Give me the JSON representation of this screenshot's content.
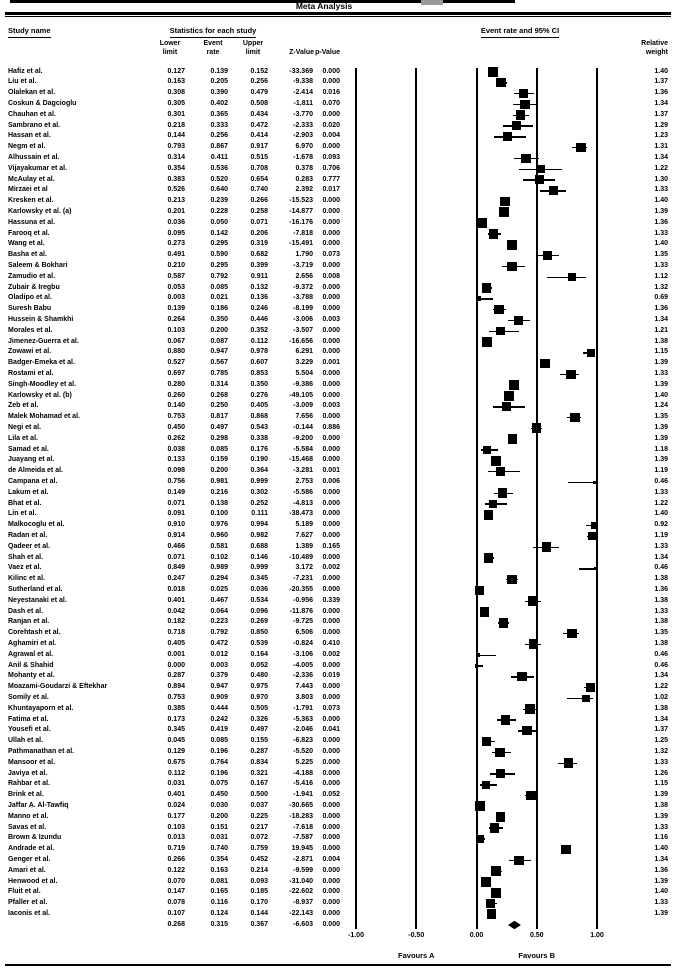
{
  "title": "Meta Analysis",
  "header": {
    "study_name": "Study name",
    "stats_title": "Statistics for each study",
    "plot_title": "Event rate and 95% CI",
    "col_lower": "Lower\nlimit",
    "col_event": "Event\nrate",
    "col_upper": "Upper\nlimit",
    "col_z": "Z-Value",
    "col_p": "p-Value",
    "col_weight": "Relative\nweight"
  },
  "colors": {
    "ink": "#000000",
    "background": "#ffffff"
  },
  "chart_data": {
    "type": "scatter",
    "subtype": "forest_plot",
    "title": "Meta Analysis",
    "xlabel": "Event rate",
    "xlim": [
      -1.0,
      1.0
    ],
    "grid": "vertical-lines-at-ticks",
    "axis": {
      "ticks": [
        {
          "value": -1.0,
          "label": "-1.00"
        },
        {
          "value": -0.5,
          "label": "-0.50"
        },
        {
          "value": 0.0,
          "label": "0.00"
        },
        {
          "value": 0.5,
          "label": "0.50"
        },
        {
          "value": 1.0,
          "label": "1.00"
        }
      ],
      "favours_a": "Favours A",
      "favours_b": "Favours B"
    },
    "studies": [
      {
        "name": "Hafiz et al.",
        "lower": "0.127",
        "event": "0.139",
        "upper": "0.152",
        "z": "-33.369",
        "p": "0.000",
        "weight": "1.40"
      },
      {
        "name": "Liu et al.",
        "lower": "0.163",
        "event": "0.205",
        "upper": "0.256",
        "z": "-9.338",
        "p": "0.000",
        "weight": "1.37"
      },
      {
        "name": "Olalekan et al.",
        "lower": "0.308",
        "event": "0.390",
        "upper": "0.479",
        "z": "-2.414",
        "p": "0.016",
        "weight": "1.36"
      },
      {
        "name": "Coskun & Dagcioglu",
        "lower": "0.305",
        "event": "0.402",
        "upper": "0.508",
        "z": "-1.811",
        "p": "0.070",
        "weight": "1.34"
      },
      {
        "name": "Chauhan  et al.",
        "lower": "0.301",
        "event": "0.365",
        "upper": "0.434",
        "z": "-3.770",
        "p": "0.000",
        "weight": "1.37"
      },
      {
        "name": "Sambrano et al.",
        "lower": "0.218",
        "event": "0.333",
        "upper": "0.472",
        "z": "-2.333",
        "p": "0.020",
        "weight": "1.29"
      },
      {
        "name": "Hassan et al.",
        "lower": "0.144",
        "event": "0.256",
        "upper": "0.414",
        "z": "-2.903",
        "p": "0.004",
        "weight": "1.23"
      },
      {
        "name": "Negm et al.",
        "lower": "0.793",
        "event": "0.867",
        "upper": "0.917",
        "z": "6.970",
        "p": "0.000",
        "weight": "1.31"
      },
      {
        "name": "Alhussain et al.",
        "lower": "0.314",
        "event": "0.411",
        "upper": "0.515",
        "z": "-1.678",
        "p": "0.093",
        "weight": "1.34"
      },
      {
        "name": "Vijayakumar et al.",
        "lower": "0.354",
        "event": "0.536",
        "upper": "0.708",
        "z": "0.378",
        "p": "0.706",
        "weight": "1.22"
      },
      {
        "name": "McAulay et al.",
        "lower": "0.383",
        "event": "0.520",
        "upper": "0.654",
        "z": "0.283",
        "p": "0.777",
        "weight": "1.30"
      },
      {
        "name": "Mirzaei et al",
        "lower": "0.526",
        "event": "0.640",
        "upper": "0.740",
        "z": "2.392",
        "p": "0.017",
        "weight": "1.33"
      },
      {
        "name": "Kresken et al.",
        "lower": "0.213",
        "event": "0.239",
        "upper": "0.266",
        "z": "-15.523",
        "p": "0.000",
        "weight": "1.40"
      },
      {
        "name": "Karlowsky et al. (a)",
        "lower": "0.201",
        "event": "0.228",
        "upper": "0.258",
        "z": "-14.877",
        "p": "0.000",
        "weight": "1.39"
      },
      {
        "name": "Hassuna et al.",
        "lower": "0.036",
        "event": "0.050",
        "upper": "0.071",
        "z": "-16.176",
        "p": "0.000",
        "weight": "1.36"
      },
      {
        "name": "Farooq et al.",
        "lower": "0.095",
        "event": "0.142",
        "upper": "0.206",
        "z": "-7.818",
        "p": "0.000",
        "weight": "1.33"
      },
      {
        "name": "Wang et al.",
        "lower": "0.273",
        "event": "0.295",
        "upper": "0.319",
        "z": "-15.491",
        "p": "0.000",
        "weight": "1.40"
      },
      {
        "name": "Basha et al.",
        "lower": "0.491",
        "event": "0.590",
        "upper": "0.682",
        "z": "1.790",
        "p": "0.073",
        "weight": "1.35"
      },
      {
        "name": "Saleem & Bokhari",
        "lower": "0.210",
        "event": "0.295",
        "upper": "0.399",
        "z": "-3.719",
        "p": "0.000",
        "weight": "1.33"
      },
      {
        "name": "Zamudio et al.",
        "lower": "0.587",
        "event": "0.792",
        "upper": "0.911",
        "z": "2.656",
        "p": "0.008",
        "weight": "1.12"
      },
      {
        "name": "Zubair &  Iregbu",
        "lower": "0.053",
        "event": "0.085",
        "upper": "0.132",
        "z": "-9.372",
        "p": "0.000",
        "weight": "1.32"
      },
      {
        "name": "Oladipo et al.",
        "lower": "0.003",
        "event": "0.021",
        "upper": "0.136",
        "z": "-3.788",
        "p": "0.000",
        "weight": "0.69"
      },
      {
        "name": "Suresh Babu",
        "lower": "0.139",
        "event": "0.186",
        "upper": "0.246",
        "z": "-8.199",
        "p": "0.000",
        "weight": "1.36"
      },
      {
        "name": "Hussein & Shamkhi",
        "lower": "0.264",
        "event": "0.350",
        "upper": "0.446",
        "z": "-3.006",
        "p": "0.003",
        "weight": "1.34"
      },
      {
        "name": "Morales et al.",
        "lower": "0.103",
        "event": "0.200",
        "upper": "0.352",
        "z": "-3.507",
        "p": "0.000",
        "weight": "1.21"
      },
      {
        "name": "Jimenez-Guerra et al.",
        "lower": "0.067",
        "event": "0.087",
        "upper": "0.112",
        "z": "-16.656",
        "p": "0.000",
        "weight": "1.38"
      },
      {
        "name": "Zowawi et al.",
        "lower": "0.880",
        "event": "0.947",
        "upper": "0.978",
        "z": "6.291",
        "p": "0.000",
        "weight": "1.15"
      },
      {
        "name": "Badger-Emeka et al.",
        "lower": "0.527",
        "event": "0.567",
        "upper": "0.607",
        "z": "3.229",
        "p": "0.001",
        "weight": "1.39"
      },
      {
        "name": "Rostami et al.",
        "lower": "0.697",
        "event": "0.785",
        "upper": "0.853",
        "z": "5.504",
        "p": "0.000",
        "weight": "1.33"
      },
      {
        "name": "Singh-Moodley et al.",
        "lower": "0.280",
        "event": "0.314",
        "upper": "0.350",
        "z": "-9.386",
        "p": "0.000",
        "weight": "1.39"
      },
      {
        "name": "Karlowsky et al. (b)",
        "lower": "0.260",
        "event": "0.268",
        "upper": "0.276",
        "z": "-49.105",
        "p": "0.000",
        "weight": "1.40"
      },
      {
        "name": "Zeb et al.",
        "lower": "0.140",
        "event": "0.250",
        "upper": "0.405",
        "z": "-3.009",
        "p": "0.003",
        "weight": "1.24"
      },
      {
        "name": "Malek Mohamad et al.",
        "lower": "0.753",
        "event": "0.817",
        "upper": "0.868",
        "z": "7.656",
        "p": "0.000",
        "weight": "1.35"
      },
      {
        "name": "Negi et al.",
        "lower": "0.450",
        "event": "0.497",
        "upper": "0.543",
        "z": "-0.144",
        "p": "0.886",
        "weight": "1.39"
      },
      {
        "name": "Lila et al.",
        "lower": "0.262",
        "event": "0.298",
        "upper": "0.338",
        "z": "-9.200",
        "p": "0.000",
        "weight": "1.39"
      },
      {
        "name": "Samad et al.",
        "lower": "0.038",
        "event": "0.085",
        "upper": "0.176",
        "z": "-5.584",
        "p": "0.000",
        "weight": "1.18"
      },
      {
        "name": "Juayang et al.",
        "lower": "0.133",
        "event": "0.159",
        "upper": "0.190",
        "z": "-15.468",
        "p": "0.000",
        "weight": "1.39"
      },
      {
        "name": "de Almeida et al.",
        "lower": "0.098",
        "event": "0.200",
        "upper": "0.364",
        "z": "-3.281",
        "p": "0.001",
        "weight": "1.19"
      },
      {
        "name": "Campana et al.",
        "lower": "0.756",
        "event": "0.981",
        "upper": "0.999",
        "z": "2.753",
        "p": "0.006",
        "weight": "0.46"
      },
      {
        "name": "Lakum et al.",
        "lower": "0.149",
        "event": "0.216",
        "upper": "0.302",
        "z": "-5.586",
        "p": "0.000",
        "weight": "1.33"
      },
      {
        "name": "Bhat et al.",
        "lower": "0.071",
        "event": "0.138",
        "upper": "0.252",
        "z": "-4.813",
        "p": "0.000",
        "weight": "1.22"
      },
      {
        "name": "Lin et al.",
        "lower": "0.091",
        "event": "0.100",
        "upper": "0.111",
        "z": "-38.473",
        "p": "0.000",
        "weight": "1.40"
      },
      {
        "name": "Malkocoglu et al.",
        "lower": "0.910",
        "event": "0.976",
        "upper": "0.994",
        "z": "5.189",
        "p": "0.000",
        "weight": "0.92"
      },
      {
        "name": "Radan et al.",
        "lower": "0.914",
        "event": "0.960",
        "upper": "0.982",
        "z": "7.627",
        "p": "0.000",
        "weight": "1.19"
      },
      {
        "name": "Qadeer et al.",
        "lower": "0.466",
        "event": "0.581",
        "upper": "0.688",
        "z": "1.389",
        "p": "0.165",
        "weight": "1.33"
      },
      {
        "name": "Shah et al.",
        "lower": "0.071",
        "event": "0.102",
        "upper": "0.146",
        "z": "-10.489",
        "p": "0.000",
        "weight": "1.34"
      },
      {
        "name": "Vaez et al.",
        "lower": "0.849",
        "event": "0.989",
        "upper": "0.999",
        "z": "3.172",
        "p": "0.002",
        "weight": "0.46"
      },
      {
        "name": "Kilinc et al.",
        "lower": "0.247",
        "event": "0.294",
        "upper": "0.345",
        "z": "-7.231",
        "p": "0.000",
        "weight": "1.38"
      },
      {
        "name": "Sutherland et al.",
        "lower": "0.018",
        "event": "0.025",
        "upper": "0.036",
        "z": "-20.355",
        "p": "0.000",
        "weight": "1.36"
      },
      {
        "name": "Neyestanaki et al.",
        "lower": "0.401",
        "event": "0.467",
        "upper": "0.534",
        "z": "-0.956",
        "p": "0.339",
        "weight": "1.38"
      },
      {
        "name": "Dash et al.",
        "lower": "0.042",
        "event": "0.064",
        "upper": "0.096",
        "z": "-11.876",
        "p": "0.000",
        "weight": "1.33"
      },
      {
        "name": "Ranjan et al.",
        "lower": "0.182",
        "event": "0.223",
        "upper": "0.269",
        "z": "-9.725",
        "p": "0.000",
        "weight": "1.38"
      },
      {
        "name": "Corehtash et al.",
        "lower": "0.718",
        "event": "0.792",
        "upper": "0.850",
        "z": "6.506",
        "p": "0.000",
        "weight": "1.35"
      },
      {
        "name": "Aghamiri et al.",
        "lower": "0.405",
        "event": "0.472",
        "upper": "0.539",
        "z": "-0.824",
        "p": "0.410",
        "weight": "1.38"
      },
      {
        "name": "Agrawal et al.",
        "lower": "0.001",
        "event": "0.012",
        "upper": "0.164",
        "z": "-3.106",
        "p": "0.002",
        "weight": "0.46"
      },
      {
        "name": "Anil & Shahid",
        "lower": "0.000",
        "event": "0.003",
        "upper": "0.052",
        "z": "-4.005",
        "p": "0.000",
        "weight": "0.46"
      },
      {
        "name": "Mohanty et al.",
        "lower": "0.287",
        "event": "0.379",
        "upper": "0.480",
        "z": "-2.336",
        "p": "0.019",
        "weight": "1.34"
      },
      {
        "name": "Moazami-Goudarzi & Eftekhar",
        "lower": "0.894",
        "event": "0.947",
        "upper": "0.975",
        "z": "7.443",
        "p": "0.000",
        "weight": "1.22"
      },
      {
        "name": "Somily et al.",
        "lower": "0.753",
        "event": "0.909",
        "upper": "0.970",
        "z": "3.803",
        "p": "0.000",
        "weight": "1.02"
      },
      {
        "name": "Khuntayaporn et al.",
        "lower": "0.385",
        "event": "0.444",
        "upper": "0.505",
        "z": "-1.791",
        "p": "0.073",
        "weight": "1.38"
      },
      {
        "name": "Fatima et al.",
        "lower": "0.173",
        "event": "0.242",
        "upper": "0.326",
        "z": "-5.363",
        "p": "0.000",
        "weight": "1.34"
      },
      {
        "name": "Yousefi et al.",
        "lower": "0.345",
        "event": "0.419",
        "upper": "0.497",
        "z": "-2.046",
        "p": "0.041",
        "weight": "1.37"
      },
      {
        "name": "Ullah et al.",
        "lower": "0.045",
        "event": "0.085",
        "upper": "0.155",
        "z": "-6.823",
        "p": "0.000",
        "weight": "1.25"
      },
      {
        "name": "Pathmanathan et al.",
        "lower": "0.129",
        "event": "0.196",
        "upper": "0.287",
        "z": "-5.520",
        "p": "0.000",
        "weight": "1.32"
      },
      {
        "name": "Mansoor et al.",
        "lower": "0.675",
        "event": "0.764",
        "upper": "0.834",
        "z": "5.225",
        "p": "0.000",
        "weight": "1.33"
      },
      {
        "name": "Javiya et al.",
        "lower": "0.112",
        "event": "0.196",
        "upper": "0.321",
        "z": "-4.188",
        "p": "0.000",
        "weight": "1.26"
      },
      {
        "name": "Rahbar et al.",
        "lower": "0.031",
        "event": "0.075",
        "upper": "0.167",
        "z": "-5.416",
        "p": "0.000",
        "weight": "1.15"
      },
      {
        "name": "Brink et al.",
        "lower": "0.401",
        "event": "0.450",
        "upper": "0.500",
        "z": "-1.941",
        "p": "0.052",
        "weight": "1.39"
      },
      {
        "name": "Jaffar A. Al-Tawfiq",
        "lower": "0.024",
        "event": "0.030",
        "upper": "0.037",
        "z": "-30.665",
        "p": "0.000",
        "weight": "1.38"
      },
      {
        "name": "Manno et al.",
        "lower": "0.177",
        "event": "0.200",
        "upper": "0.225",
        "z": "-18.283",
        "p": "0.000",
        "weight": "1.39"
      },
      {
        "name": "Savas et al.",
        "lower": "0.103",
        "event": "0.151",
        "upper": "0.217",
        "z": "-7.618",
        "p": "0.000",
        "weight": "1.33"
      },
      {
        "name": "Brown & Izundu",
        "lower": "0.013",
        "event": "0.031",
        "upper": "0.072",
        "z": "-7.587",
        "p": "0.000",
        "weight": "1.16"
      },
      {
        "name": "Andrade et al.",
        "lower": "0.719",
        "event": "0.740",
        "upper": "0.759",
        "z": "19.945",
        "p": "0.000",
        "weight": "1.40"
      },
      {
        "name": "Genger et al.",
        "lower": "0.266",
        "event": "0.354",
        "upper": "0.452",
        "z": "-2.871",
        "p": "0.004",
        "weight": "1.34"
      },
      {
        "name": "Amari et al.",
        "lower": "0.122",
        "event": "0.163",
        "upper": "0.214",
        "z": "-9.599",
        "p": "0.000",
        "weight": "1.36"
      },
      {
        "name": "Henwood et al.",
        "lower": "0.070",
        "event": "0.081",
        "upper": "0.093",
        "z": "-31.040",
        "p": "0.000",
        "weight": "1.39"
      },
      {
        "name": "Fluit et al.",
        "lower": "0.147",
        "event": "0.165",
        "upper": "0.185",
        "z": "-22.602",
        "p": "0.000",
        "weight": "1.40"
      },
      {
        "name": "Pfaller et al.",
        "lower": "0.078",
        "event": "0.116",
        "upper": "0.170",
        "z": "-8.937",
        "p": "0.000",
        "weight": "1.33"
      },
      {
        "name": "Iaconis et al.",
        "lower": "0.107",
        "event": "0.124",
        "upper": "0.144",
        "z": "-22.143",
        "p": "0.000",
        "weight": "1.39"
      }
    ],
    "summary": {
      "name": "",
      "lower": "0.268",
      "event": "0.315",
      "upper": "0.367",
      "z": "-6.603",
      "p": "0.000"
    }
  }
}
